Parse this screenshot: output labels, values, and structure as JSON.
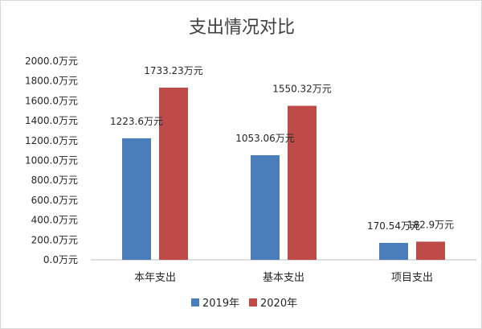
{
  "chart_data": {
    "type": "bar",
    "title": "支出情况对比",
    "categories": [
      "本年支出",
      "基本支出",
      "项目支出"
    ],
    "series": [
      {
        "name": "2019年",
        "color": "#4a7ebb",
        "values": [
          1223.6,
          1053.06,
          170.54
        ],
        "labels": [
          "1223.6万元",
          "1053.06万元",
          "170.54万元"
        ]
      },
      {
        "name": "2020年",
        "color": "#be4b48",
        "values": [
          1733.23,
          1550.32,
          182.9
        ],
        "labels": [
          "1733.23万元",
          "1550.32万元",
          "182.9万元"
        ]
      }
    ],
    "yticks": [
      "0.0万元",
      "200.0万元",
      "400.0万元",
      "600.0万元",
      "800.0万元",
      "1000.0万元",
      "1200.0万元",
      "1400.0万元",
      "1600.0万元",
      "1800.0万元",
      "2000.0万元"
    ],
    "ylim": [
      0,
      2000
    ],
    "ytick_step": 200,
    "grid": false,
    "legend_position": "bottom"
  }
}
